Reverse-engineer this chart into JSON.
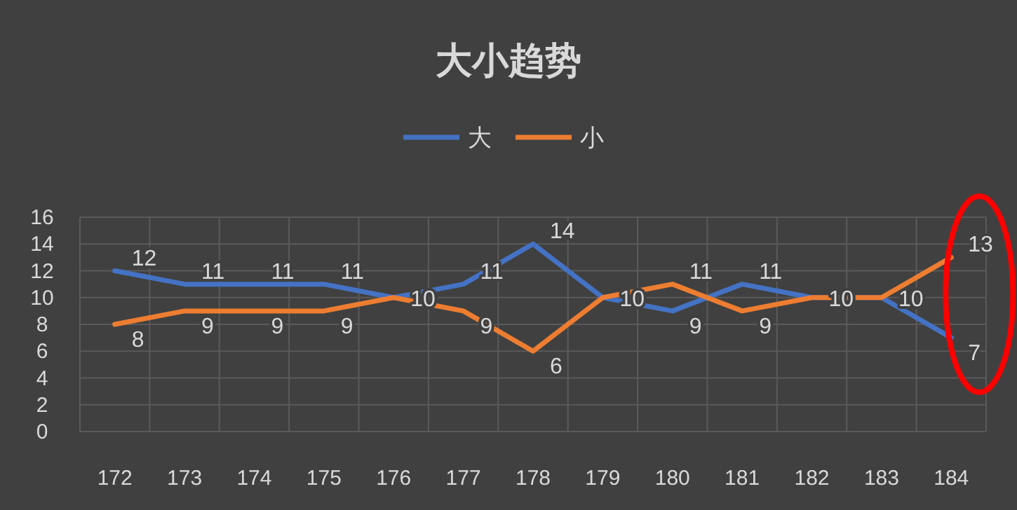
{
  "chart_data": {
    "type": "line",
    "title": "大小趋势",
    "categories": [
      "172",
      "173",
      "174",
      "175",
      "176",
      "177",
      "178",
      "179",
      "180",
      "181",
      "182",
      "183",
      "184"
    ],
    "series": [
      {
        "name": "大",
        "color": "#4472c4",
        "values": [
          12,
          11,
          11,
          11,
          10,
          11,
          14,
          10,
          9,
          11,
          10,
          10,
          7
        ],
        "value_labels": [
          "12",
          "11",
          "11",
          "11",
          "10",
          "11",
          "14",
          "10",
          "9",
          "11",
          "10",
          "10",
          "7"
        ]
      },
      {
        "name": "小",
        "color": "#ed7d31",
        "values": [
          8,
          9,
          9,
          9,
          10,
          9,
          6,
          10,
          11,
          9,
          10,
          10,
          13
        ],
        "value_labels": [
          "8",
          "9",
          "9",
          "9",
          null,
          "9",
          "6",
          null,
          "11",
          "9",
          null,
          null,
          "13"
        ]
      }
    ],
    "ylim": [
      0,
      16
    ],
    "yticks": [
      0,
      2,
      4,
      6,
      8,
      10,
      12,
      14,
      16
    ],
    "grid": true,
    "legend": "top",
    "marker": "none",
    "line_style": "solid"
  }
}
